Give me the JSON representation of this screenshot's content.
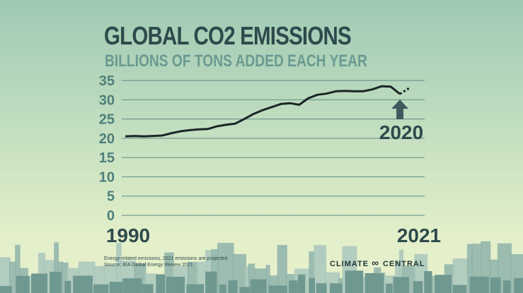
{
  "title": "GLOBAL CO2 EMISSIONS",
  "subtitle": "BILLIONS OF TONS ADDED EACH YEAR",
  "footnote": [
    "Energy-related emissions, 2021 emissions are projected",
    "Source: IEA Global Energy Review 2021"
  ],
  "brand": "CLIMATE CENTRAL",
  "colors": {
    "line": "#1b2526",
    "arrow": "#3f5a5e",
    "grid": "#5f8a84",
    "ticks": "#4f7f7a"
  },
  "chart_data": {
    "type": "line",
    "title": "GLOBAL CO2 EMISSIONS",
    "subtitle": "BILLIONS OF TONS ADDED EACH YEAR",
    "xlabel": "",
    "ylabel": "",
    "ylim": [
      0,
      35
    ],
    "yticks": [
      0,
      5,
      10,
      15,
      20,
      25,
      30,
      35
    ],
    "xticks": [
      {
        "value": 1990,
        "label": "1990"
      },
      {
        "value": 2021,
        "label": "2021"
      }
    ],
    "grid": true,
    "x": [
      1990,
      1991,
      1992,
      1993,
      1994,
      1995,
      1996,
      1997,
      1998,
      1999,
      2000,
      2001,
      2002,
      2003,
      2004,
      2005,
      2006,
      2007,
      2008,
      2009,
      2010,
      2011,
      2012,
      2013,
      2014,
      2015,
      2016,
      2017,
      2018,
      2019,
      2020,
      2021
    ],
    "series": [
      {
        "values": [
          20.5,
          20.6,
          20.5,
          20.6,
          20.7,
          21.3,
          21.8,
          22.1,
          22.3,
          22.4,
          23.1,
          23.5,
          23.8,
          25.0,
          26.3,
          27.3,
          28.1,
          28.9,
          29.1,
          28.7,
          30.4,
          31.3,
          31.6,
          32.2,
          32.3,
          32.2,
          32.2,
          32.7,
          33.5,
          33.4,
          31.5,
          33.0
        ]
      }
    ],
    "projected_from": 2020,
    "annotations": [
      {
        "x": 2020,
        "label": "2020",
        "marker": "arrow-up"
      }
    ]
  }
}
